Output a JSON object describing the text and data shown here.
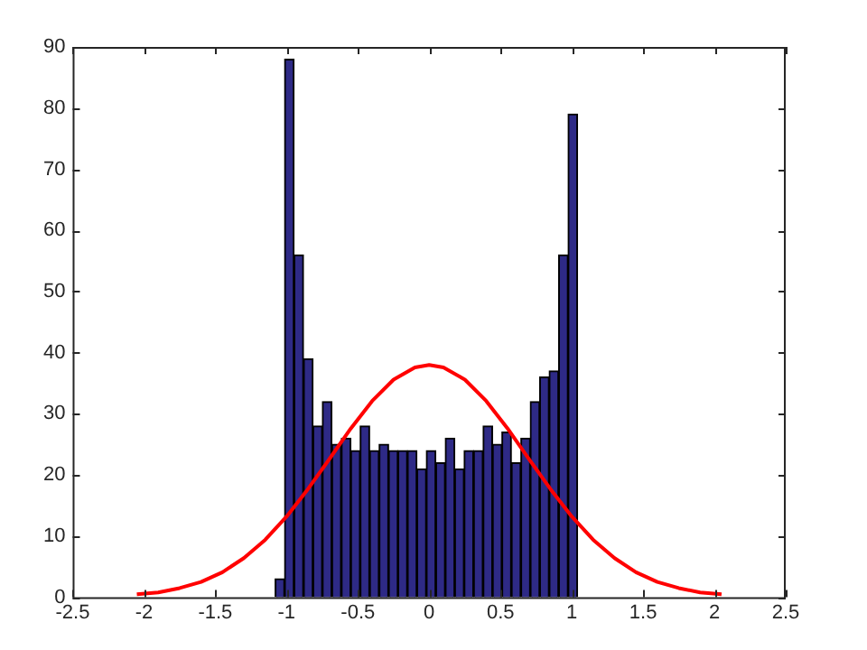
{
  "chart_data": {
    "type": "histogram",
    "bins": [
      -1.08,
      -1.014,
      -0.948,
      -0.881,
      -0.815,
      -0.749,
      -0.683,
      -0.616,
      -0.55,
      -0.484,
      -0.418,
      -0.351,
      -0.285,
      -0.219,
      -0.153,
      -0.086,
      -0.02,
      0.046,
      0.113,
      0.179,
      0.245,
      0.311,
      0.378,
      0.444,
      0.51,
      0.576,
      0.643,
      0.709,
      0.775,
      0.841,
      0.908,
      0.974,
      1.04
    ],
    "values": [
      3,
      88,
      56,
      39,
      28,
      32,
      25,
      26,
      24,
      28,
      24,
      25,
      24,
      24,
      24,
      21,
      24,
      22,
      26,
      21,
      24,
      24,
      28,
      25,
      27,
      22,
      26,
      32,
      36,
      37,
      56,
      79
    ],
    "color": "#2e2a86",
    "series": [
      {
        "type": "line",
        "color": "#ff0000",
        "x": [
          -2.05,
          -1.9,
          -1.75,
          -1.6,
          -1.45,
          -1.3,
          -1.15,
          -1.0,
          -0.85,
          -0.7,
          -0.55,
          -0.4,
          -0.25,
          -0.1,
          0,
          0.1,
          0.25,
          0.4,
          0.55,
          0.7,
          0.85,
          1.0,
          1.15,
          1.3,
          1.45,
          1.6,
          1.75,
          1.9,
          2.05
        ],
        "values": [
          0.5,
          0.8,
          1.5,
          2.5,
          4.1,
          6.4,
          9.4,
          13.2,
          17.7,
          22.6,
          27.6,
          32.1,
          35.6,
          37.6,
          38,
          37.6,
          35.6,
          32.1,
          27.6,
          22.6,
          17.7,
          13.2,
          9.4,
          6.4,
          4.1,
          2.5,
          1.5,
          0.8,
          0.5
        ]
      }
    ],
    "xlim": [
      -2.5,
      2.5
    ],
    "xticks": [
      -2.5,
      -2,
      -1.5,
      -1,
      -0.5,
      0,
      0.5,
      1,
      1.5,
      2,
      2.5
    ],
    "ylim": [
      0,
      90
    ],
    "yticks": [
      0,
      10,
      20,
      30,
      40,
      50,
      60,
      70,
      80,
      90
    ]
  }
}
